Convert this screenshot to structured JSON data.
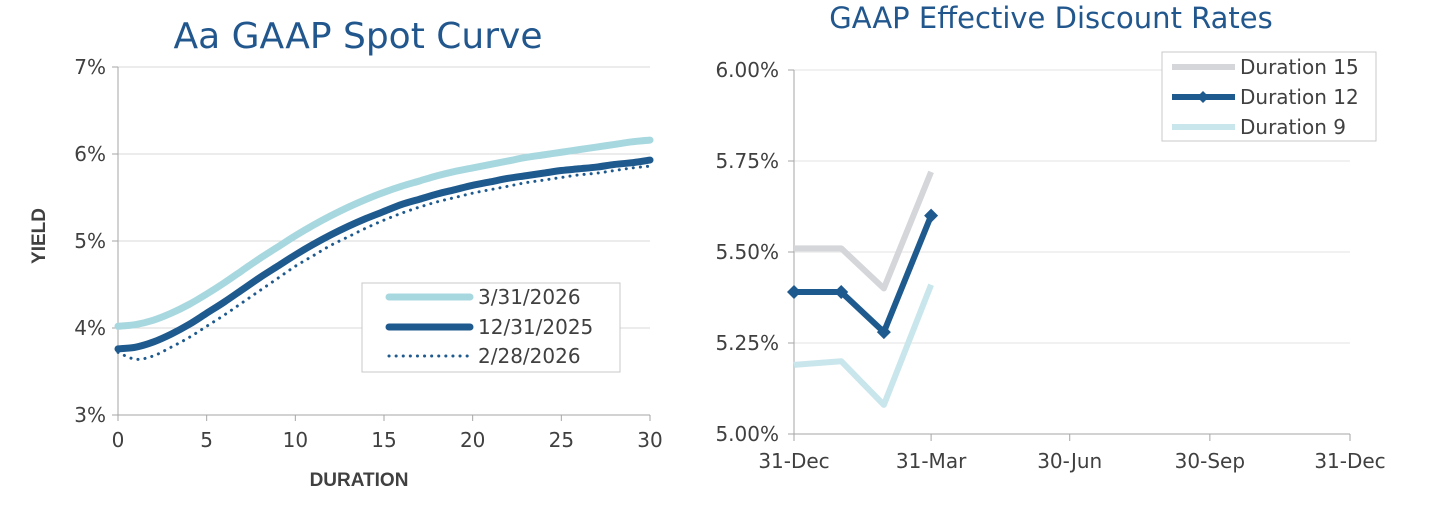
{
  "chart_data": [
    {
      "type": "line",
      "title": "Aa GAAP Spot Curve",
      "xlabel": "DURATION",
      "ylabel": "YIELD",
      "xlim": [
        0,
        30
      ],
      "ylim": [
        3,
        7
      ],
      "xticks": [
        0,
        5,
        10,
        15,
        20,
        25,
        30
      ],
      "xtick_labels": [
        "0",
        "5",
        "10",
        "15",
        "20",
        "25",
        "30"
      ],
      "yticks": [
        3,
        4,
        5,
        6,
        7
      ],
      "ytick_labels": [
        "3%",
        "4%",
        "5%",
        "6%",
        "7%"
      ],
      "grid": true,
      "legend_position": "bottom-right",
      "x": [
        0,
        1,
        2,
        3,
        4,
        5,
        6,
        7,
        8,
        9,
        10,
        11,
        12,
        13,
        14,
        15,
        16,
        17,
        18,
        19,
        20,
        21,
        22,
        23,
        24,
        25,
        26,
        27,
        28,
        29,
        30
      ],
      "series": [
        {
          "name": "3/31/2026",
          "color": "#a8d8df",
          "style": "solid-thick",
          "values": [
            4.02,
            4.04,
            4.09,
            4.17,
            4.27,
            4.39,
            4.52,
            4.66,
            4.8,
            4.93,
            5.06,
            5.18,
            5.29,
            5.39,
            5.48,
            5.56,
            5.63,
            5.69,
            5.75,
            5.8,
            5.84,
            5.88,
            5.92,
            5.96,
            5.99,
            6.02,
            6.05,
            6.08,
            6.11,
            6.14,
            6.16
          ]
        },
        {
          "name": "12/31/2025",
          "color": "#1f5a8e",
          "style": "solid-thick",
          "values": [
            3.76,
            3.78,
            3.84,
            3.93,
            4.04,
            4.17,
            4.3,
            4.44,
            4.58,
            4.71,
            4.84,
            4.96,
            5.07,
            5.17,
            5.26,
            5.34,
            5.42,
            5.48,
            5.54,
            5.59,
            5.64,
            5.68,
            5.72,
            5.75,
            5.78,
            5.81,
            5.83,
            5.85,
            5.88,
            5.9,
            5.93
          ]
        },
        {
          "name": "2/28/2026",
          "color": "#1f5a8e",
          "style": "dotted",
          "values": [
            3.72,
            3.64,
            3.68,
            3.78,
            3.89,
            4.02,
            4.15,
            4.29,
            4.43,
            4.57,
            4.71,
            4.83,
            4.95,
            5.05,
            5.15,
            5.24,
            5.32,
            5.39,
            5.45,
            5.5,
            5.55,
            5.59,
            5.63,
            5.67,
            5.7,
            5.73,
            5.76,
            5.78,
            5.81,
            5.84,
            5.86
          ]
        }
      ]
    },
    {
      "type": "line",
      "title": "GAAP Effective Discount Rates",
      "xlabel": "",
      "ylabel": "",
      "xlim": [
        0,
        365
      ],
      "ylim": [
        5.0,
        6.0
      ],
      "xticks": [
        0,
        90,
        181,
        273,
        365
      ],
      "xtick_labels": [
        "31-Dec",
        "31-Mar",
        "30-Jun",
        "30-Sep",
        "31-Dec"
      ],
      "yticks": [
        5.0,
        5.25,
        5.5,
        5.75,
        6.0
      ],
      "ytick_labels": [
        "5.00%",
        "5.25%",
        "5.50%",
        "5.75%",
        "6.00%"
      ],
      "grid": true,
      "legend_position": "top-right",
      "x": [
        0,
        31,
        59,
        90
      ],
      "series": [
        {
          "name": "Duration 15",
          "color": "#d4d6da",
          "marker": false,
          "values": [
            5.51,
            5.51,
            5.4,
            5.72
          ]
        },
        {
          "name": "Duration 12",
          "color": "#1f5a8e",
          "marker": true,
          "values": [
            5.39,
            5.39,
            5.28,
            5.6
          ]
        },
        {
          "name": "Duration 9",
          "color": "#c9e6ec",
          "marker": false,
          "values": [
            5.19,
            5.2,
            5.08,
            5.41
          ]
        }
      ]
    }
  ]
}
